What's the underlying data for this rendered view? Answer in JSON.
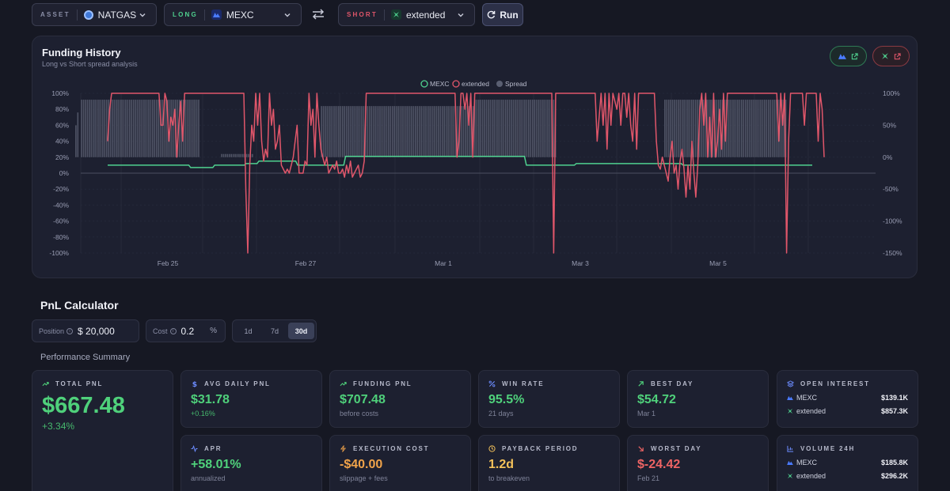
{
  "topbar": {
    "asset": {
      "label": "ASSET",
      "value": "NATGAS"
    },
    "long": {
      "label": "LONG",
      "value": "MEXC"
    },
    "short": {
      "label": "SHORT",
      "value": "extended"
    },
    "run_label": "Run"
  },
  "colors": {
    "long": "#4fd18f",
    "short": "#e0566a",
    "spread": "#5a5f72",
    "accent": "#4fd17b",
    "bg": "#161823"
  },
  "chart_panel": {
    "title": "Funding History",
    "subtitle": "Long vs Short spread analysis"
  },
  "chart_data": {
    "type": "line",
    "legend": [
      "MEXC",
      "extended",
      "Spread"
    ],
    "legend_position": "top-center",
    "x_ticks": [
      "Feb 25",
      "Feb 27",
      "Mar 1",
      "Mar 3",
      "Mar 5"
    ],
    "y_left_ticks": [
      "100%",
      "80%",
      "60%",
      "40%",
      "20%",
      "0%",
      "-20%",
      "-40%",
      "-60%",
      "-80%",
      "-100%"
    ],
    "y_right_ticks": [
      "100%",
      "50%",
      "0%",
      "-50%",
      "-100%",
      "-150%"
    ],
    "ylim_left": [
      -100,
      100
    ],
    "ylim_right": [
      -150,
      100
    ],
    "series": [
      {
        "name": "MEXC",
        "axis": "left",
        "values": [
          10,
          10,
          10,
          10,
          10,
          10,
          10,
          10,
          10,
          10,
          10,
          10,
          10,
          10,
          10,
          10,
          10,
          10,
          10,
          10,
          10,
          10,
          10,
          10,
          10,
          10,
          10,
          10,
          10,
          10,
          10,
          10,
          10,
          10,
          10,
          10,
          10,
          10,
          10,
          10,
          10,
          10,
          10,
          10,
          10,
          7,
          7,
          7,
          7,
          7,
          7,
          7,
          7,
          7,
          7,
          7,
          7,
          7,
          10,
          10,
          10,
          10,
          10,
          10,
          10,
          10,
          10,
          10,
          10,
          10,
          10,
          10,
          10,
          10,
          10,
          12,
          12,
          12,
          12,
          12,
          12,
          12,
          15,
          15,
          15,
          15,
          15,
          15,
          15,
          15,
          15,
          15,
          15,
          15,
          15,
          15,
          15,
          15,
          15,
          15,
          15,
          15,
          15,
          10,
          10,
          10,
          10,
          10,
          10,
          10,
          10,
          10,
          10,
          10,
          10,
          10,
          10,
          10,
          10,
          10,
          10,
          10,
          10,
          10,
          10,
          10,
          10,
          10,
          10,
          21,
          21,
          21,
          21,
          21,
          21,
          21,
          21,
          21,
          21,
          21,
          21,
          21,
          21,
          21,
          21,
          21,
          21,
          21,
          21,
          21,
          21,
          21,
          21,
          21,
          21,
          21,
          21,
          21,
          21,
          21,
          21,
          21,
          21,
          21,
          21,
          21,
          21,
          21,
          21,
          21,
          21,
          21,
          21,
          21,
          21,
          21,
          21,
          21,
          21,
          21,
          21,
          21,
          21,
          21,
          21,
          21,
          21,
          21,
          21,
          21,
          21,
          21,
          21,
          21,
          21,
          21,
          21,
          21,
          21,
          21,
          21,
          21,
          21,
          21,
          21,
          21,
          21,
          21,
          21,
          21,
          21,
          21,
          21,
          21,
          21,
          21,
          21,
          21,
          21,
          21,
          21,
          21,
          21,
          21,
          21,
          21,
          21,
          10,
          10,
          10,
          10,
          10,
          10,
          10,
          10,
          10,
          10,
          10,
          10,
          10,
          10,
          10,
          10,
          10,
          10,
          10,
          10,
          10,
          10,
          10,
          10,
          10,
          10,
          10,
          12,
          12,
          12,
          12,
          12,
          12,
          12,
          12,
          12,
          12,
          12,
          12,
          12,
          12,
          12,
          12,
          12,
          12,
          12,
          12,
          12,
          12,
          12,
          12,
          12,
          12,
          12,
          12,
          12,
          12,
          12,
          12,
          12,
          12,
          12,
          12,
          12,
          12,
          12,
          12,
          12,
          12,
          12,
          12,
          12,
          12,
          12,
          12,
          12,
          12,
          12,
          12,
          12,
          12,
          12,
          12,
          12,
          12,
          10,
          10,
          10,
          10,
          10,
          10,
          10,
          10,
          10,
          10,
          10,
          10,
          10,
          10,
          10,
          10,
          10,
          10,
          10,
          10,
          10,
          10,
          10,
          10,
          10,
          10,
          10,
          10,
          10,
          10,
          10,
          10,
          10,
          10,
          10,
          10,
          10,
          10,
          10,
          10,
          10,
          10,
          10,
          10,
          10,
          10,
          10,
          10,
          10,
          10,
          10,
          10,
          10,
          10,
          10,
          10,
          10,
          10,
          10,
          10,
          10,
          10,
          10,
          10,
          10,
          10,
          10,
          10,
          10,
          10,
          10
        ]
      },
      {
        "name": "extended",
        "axis": "left",
        "values": [
          40,
          80,
          100,
          100,
          100,
          100,
          100,
          100,
          100,
          100,
          100,
          100,
          100,
          100,
          100,
          100,
          100,
          100,
          100,
          100,
          100,
          100,
          100,
          100,
          100,
          100,
          100,
          60,
          60,
          100,
          90,
          40,
          70,
          60,
          80,
          20,
          60,
          90,
          40,
          100,
          100,
          100,
          100,
          100,
          100,
          100,
          100,
          100,
          100,
          100,
          100,
          100,
          100,
          100,
          100,
          100,
          100,
          100,
          100,
          100,
          100,
          100,
          100,
          100,
          100,
          100,
          100,
          100,
          100,
          100,
          -20,
          -100,
          10,
          60,
          40,
          100,
          60,
          100,
          40,
          15,
          30,
          20,
          100,
          60,
          80,
          30,
          40,
          60,
          10,
          5,
          0,
          5,
          0,
          10,
          20,
          40,
          60,
          0,
          0,
          0,
          15,
          10,
          100,
          60,
          80,
          20,
          100,
          60,
          30,
          20,
          10,
          20,
          0,
          5,
          10,
          5,
          15,
          0,
          0,
          5,
          -5,
          10,
          0,
          15,
          -5,
          0,
          5,
          10,
          -5,
          0,
          15,
          100,
          100,
          100,
          100,
          100,
          100,
          100,
          100,
          100,
          100,
          100,
          100,
          100,
          100,
          100,
          100,
          100,
          100,
          100,
          100,
          100,
          100,
          100,
          100,
          100,
          100,
          100,
          100,
          100,
          100,
          100,
          100,
          100,
          100,
          100,
          100,
          100,
          100,
          100,
          100,
          100,
          100,
          100,
          100,
          100,
          100,
          20,
          40,
          100,
          100,
          80,
          100,
          60,
          100,
          20,
          100,
          100,
          100,
          100,
          100,
          100,
          100,
          100,
          100,
          100,
          100,
          100,
          100,
          100,
          100,
          100,
          100,
          100,
          100,
          100,
          100,
          100,
          100,
          100,
          100,
          100,
          100,
          100,
          100,
          100,
          100,
          100,
          100,
          100,
          100,
          100,
          100,
          100,
          100,
          100,
          -100,
          100,
          100,
          100,
          100,
          100,
          100,
          100,
          100,
          100,
          100,
          100,
          100,
          100,
          100,
          100,
          100,
          100,
          100,
          100,
          100,
          100,
          40,
          70,
          100,
          60,
          100,
          30,
          100,
          60,
          100,
          90,
          80,
          100,
          60,
          100,
          100,
          70,
          100,
          60,
          40,
          100,
          30,
          100,
          100,
          100,
          100,
          100,
          100,
          100,
          100,
          100,
          40,
          10,
          5,
          20,
          10,
          0,
          -10,
          20,
          40,
          0,
          10,
          -20,
          15,
          30,
          5,
          -30,
          10,
          -20,
          40,
          0,
          -30,
          10,
          80,
          100,
          60,
          100,
          20,
          70,
          20,
          100,
          20,
          40,
          80,
          30,
          100,
          40,
          100,
          100,
          100,
          100,
          100,
          100,
          100,
          100,
          100,
          100,
          100,
          100,
          100,
          100,
          100,
          100,
          100,
          100,
          100,
          100,
          100,
          100,
          100,
          100,
          100,
          100,
          40,
          100,
          60,
          100,
          -100,
          40,
          100,
          100,
          100,
          100,
          100,
          100,
          100,
          60,
          100,
          100,
          100,
          100,
          100,
          100,
          40,
          100,
          80,
          20
        ]
      },
      {
        "name": "Spread",
        "axis": "right",
        "type": "bar",
        "values": [
          50,
          70,
          0,
          90,
          90,
          90,
          90,
          90,
          90,
          90,
          90,
          90,
          90,
          90,
          90,
          90,
          90,
          90,
          90,
          90,
          90,
          90,
          90,
          90,
          90,
          90,
          90,
          90,
          90,
          90,
          90,
          90,
          90,
          90,
          90,
          90,
          90,
          90,
          90,
          90,
          90,
          90,
          90,
          90,
          90,
          90,
          90,
          90,
          90,
          90,
          90,
          90,
          90,
          90,
          90,
          90,
          90,
          90,
          90,
          90,
          90,
          90,
          90,
          90,
          90,
          0,
          0,
          0,
          0,
          0,
          0,
          0,
          0,
          0,
          0,
          0,
          5,
          5,
          5,
          5,
          5,
          5,
          5,
          5,
          5,
          5,
          5,
          5,
          5,
          5,
          5,
          5,
          5,
          0,
          0,
          0,
          0,
          0,
          0,
          0,
          0,
          0,
          0,
          0,
          0,
          0,
          0,
          0,
          0,
          0,
          0,
          0,
          0,
          0,
          0,
          0,
          0,
          0,
          0,
          0,
          0,
          0,
          0,
          0,
          0,
          0,
          0,
          0,
          80,
          80,
          80,
          80,
          80,
          80,
          80,
          80,
          80,
          80,
          80,
          80,
          80,
          80,
          80,
          80,
          80,
          80,
          80,
          80,
          80,
          80,
          80,
          80,
          80,
          80,
          80,
          80,
          80,
          80,
          80,
          80,
          80,
          80,
          80,
          80,
          80,
          80,
          80,
          80,
          80,
          80,
          80,
          80,
          80,
          80,
          80,
          80,
          80,
          80,
          80,
          80,
          80,
          80,
          80,
          80,
          80,
          80,
          80,
          80,
          80,
          80,
          80,
          80,
          80,
          80,
          80,
          80,
          80,
          80,
          80,
          80,
          80,
          80,
          80,
          80,
          80,
          80,
          80,
          80,
          90,
          90,
          90,
          90,
          90,
          90,
          90,
          90,
          90,
          90,
          90,
          90,
          90,
          90,
          90,
          90,
          90,
          90,
          90,
          90,
          90,
          90,
          90,
          90,
          90,
          90,
          90,
          90,
          90,
          90,
          90,
          90,
          90,
          90,
          90,
          90,
          90,
          90,
          90,
          90,
          90,
          90,
          90,
          0,
          0,
          0,
          0,
          0,
          0,
          0,
          0,
          0,
          0,
          0,
          0,
          0,
          0,
          0,
          0,
          0,
          0,
          0,
          0,
          0,
          0,
          0,
          0,
          0,
          0,
          0,
          0,
          0,
          0,
          0,
          0,
          0,
          0,
          0,
          0,
          0,
          0,
          0,
          0,
          0,
          0,
          0,
          0,
          0,
          0,
          0,
          0,
          0,
          0,
          0,
          0,
          0,
          0,
          0,
          0,
          90,
          90,
          90,
          90,
          90,
          90,
          90,
          90,
          90,
          90,
          90,
          90,
          90,
          90,
          90,
          90,
          90,
          90,
          90,
          90,
          90,
          90,
          90,
          90,
          90,
          90,
          90,
          90,
          90,
          90,
          90,
          90,
          90,
          90,
          90,
          90,
          90,
          90,
          90,
          90,
          90,
          90,
          90,
          90,
          90,
          90,
          90,
          90,
          90,
          90,
          90,
          90,
          90,
          90,
          90,
          90,
          90,
          90,
          90,
          90,
          90,
          90,
          90,
          90,
          0,
          0,
          0,
          0,
          0,
          0,
          0,
          0,
          0,
          0,
          0,
          0,
          0,
          0,
          0
        ]
      }
    ]
  },
  "pnl": {
    "title": "PnL Calculator",
    "position": {
      "label": "Position",
      "value": "$ 20,000"
    },
    "cost": {
      "label": "Cost",
      "value": "0.2",
      "suffix": "%"
    },
    "periods": [
      "1d",
      "7d",
      "30d"
    ],
    "active_period": "30d",
    "summary_title": "Performance Summary"
  },
  "cards": {
    "total_pnl": {
      "label": "TOTAL PNL",
      "value": "$667.48",
      "sub": "+3.34%"
    },
    "avg_daily": {
      "label": "AVG DAILY PNL",
      "value": "$31.78",
      "sub": "+0.16%"
    },
    "funding_pnl": {
      "label": "FUNDING PNL",
      "value": "$707.48",
      "sub": "before costs"
    },
    "win_rate": {
      "label": "WIN RATE",
      "value": "95.5%",
      "sub": "21 days"
    },
    "best_day": {
      "label": "BEST DAY",
      "value": "$54.72",
      "sub": "Mar 1"
    },
    "open_interest": {
      "label": "OPEN INTEREST",
      "rows": [
        {
          "name": "MEXC",
          "value": "$139.1K"
        },
        {
          "name": "extended",
          "value": "$857.3K"
        }
      ]
    },
    "apr": {
      "label": "APR",
      "value": "+58.01%",
      "sub": "annualized"
    },
    "exec_cost": {
      "label": "EXECUTION COST",
      "value": "-$40.00",
      "sub": "slippage + fees"
    },
    "payback": {
      "label": "PAYBACK PERIOD",
      "value": "1.2d",
      "sub": "to breakeven"
    },
    "worst_day": {
      "label": "WORST DAY",
      "value": "$-24.42",
      "sub": "Feb 21"
    },
    "volume": {
      "label": "VOLUME 24H",
      "rows": [
        {
          "name": "MEXC",
          "value": "$185.8K"
        },
        {
          "name": "extended",
          "value": "$296.2K"
        }
      ]
    }
  }
}
